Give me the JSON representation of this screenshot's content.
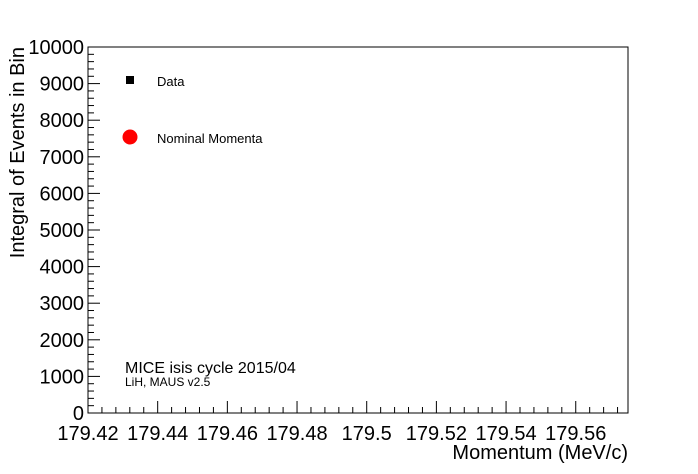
{
  "chart_data": {
    "type": "scatter",
    "title": "",
    "xlabel": "Momentum (MeV/c)",
    "ylabel": "Integral of Events in Bin",
    "xlim": [
      179.42,
      179.575
    ],
    "ylim": [
      0,
      10000
    ],
    "x_tick_labels": [
      "179.42",
      "179.44",
      "179.46",
      "179.48",
      "179.5",
      "179.52",
      "179.54",
      "179.56"
    ],
    "y_tick_labels": [
      "0",
      "1000",
      "2000",
      "3000",
      "4000",
      "5000",
      "6000",
      "7000",
      "8000",
      "9000",
      "10000"
    ],
    "x_ticks": [
      179.42,
      179.44,
      179.46,
      179.48,
      179.5,
      179.52,
      179.54,
      179.56
    ],
    "y_ticks": [
      0,
      1000,
      2000,
      3000,
      4000,
      5000,
      6000,
      7000,
      8000,
      9000,
      10000
    ],
    "grid": false,
    "legend_position": "top-left",
    "series": [
      {
        "name": "Data",
        "marker": "square",
        "color": "#000000",
        "points": []
      },
      {
        "name": "Nominal Momenta",
        "marker": "circle",
        "color": "#ff0000",
        "points": []
      }
    ],
    "annotations": [
      {
        "text": "MICE isis cycle 2015/04",
        "style": "main"
      },
      {
        "text": "LiH, MAUS v2.5",
        "style": "sub"
      }
    ]
  }
}
